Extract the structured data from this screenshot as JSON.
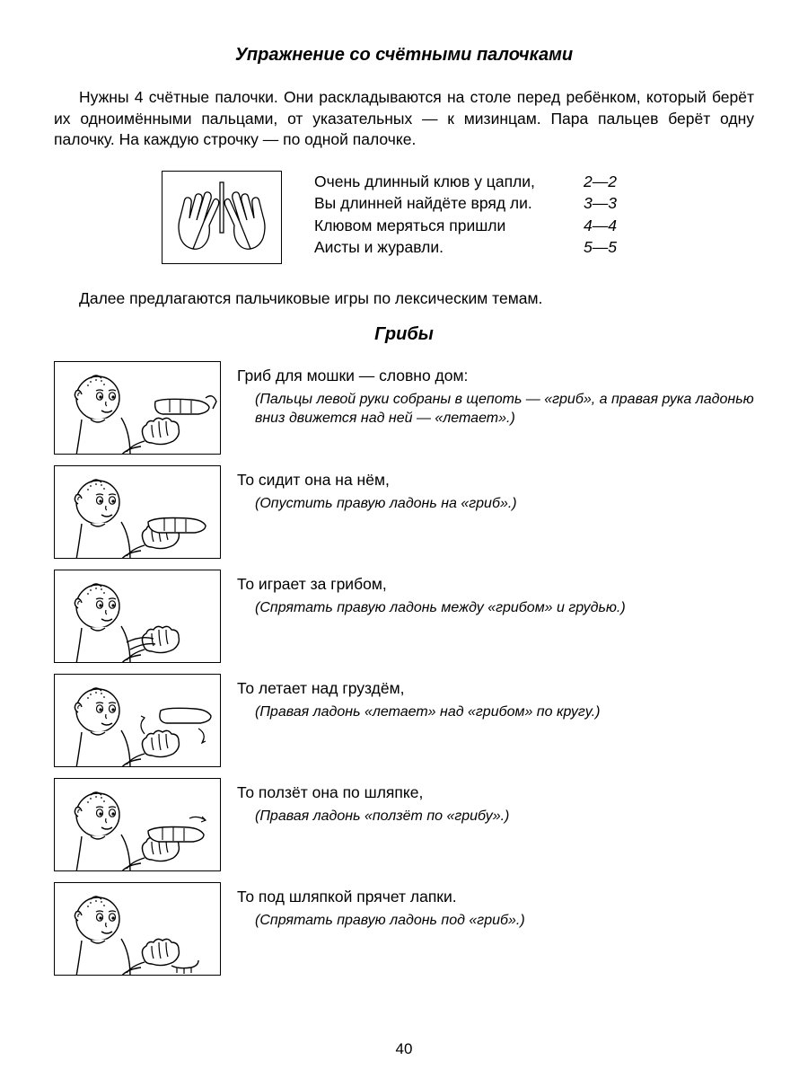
{
  "page": {
    "title": "Упражнение со счётными палочками",
    "intro": "Нужны 4 счётные палочки. Они раскладываются на столе перед ребёнком, который берёт их одноимёнными пальцами, от указательных — к мизинцам. Пара пальцев берёт одну палочку. На каждую строчку — по одной палочке.",
    "poem": [
      {
        "text": "Очень длинный клюв у цапли,",
        "num": "2—2"
      },
      {
        "text": "Вы длинней найдёте вряд ли.",
        "num": "3—3"
      },
      {
        "text": "Клювом меряться пришли",
        "num": "4—4"
      },
      {
        "text": "Аисты и журавли.",
        "num": "5—5"
      }
    ],
    "mid": "Далее предлагаются пальчиковые игры по лексическим темам.",
    "subtitle": "Грибы",
    "exercises": [
      {
        "line": "Гриб для мошки — словно дом:",
        "instr": "(Пальцы левой руки собраны в щепоть — «гриб», а правая рука ладонью вниз движется над ней — «летает».)"
      },
      {
        "line": "То сидит она на нём,",
        "instr": "(Опустить правую ладонь на «гриб».)"
      },
      {
        "line": "То играет за грибом,",
        "instr": "(Спрятать правую ладонь между «грибом» и грудью.)"
      },
      {
        "line": "То летает над груздём,",
        "instr": "(Правая ладонь «летает» над «грибом» по кругу.)"
      },
      {
        "line": "То ползёт она по шляпке,",
        "instr": "(Правая ладонь «ползёт по «грибу».)"
      },
      {
        "line": "То под шляпкой прячет лапки.",
        "instr": "(Спрятать правую ладонь под «гриб».)"
      }
    ],
    "page_number": "40"
  },
  "style": {
    "border_color": "#000000",
    "background": "#ffffff",
    "text_color": "#000000",
    "title_fontsize": 20,
    "body_fontsize": 17.5,
    "instr_fontsize": 16
  }
}
